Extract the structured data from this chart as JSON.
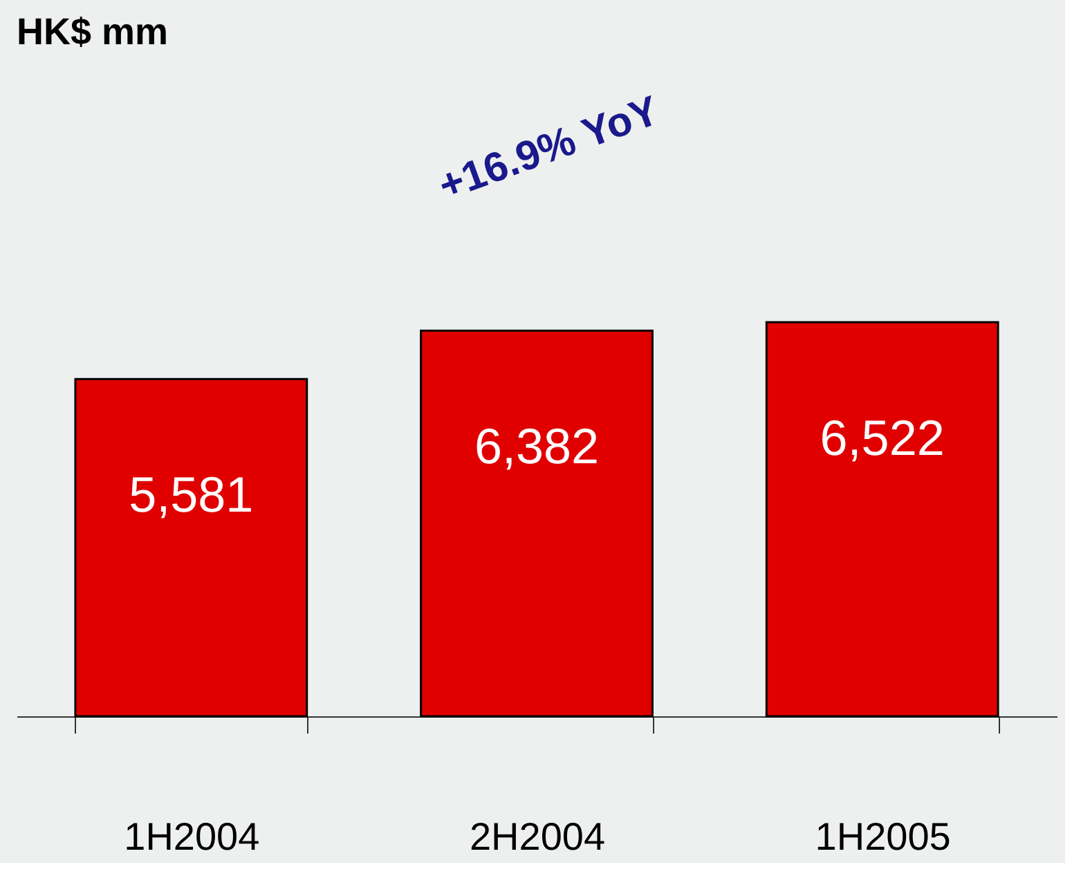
{
  "chart_data": {
    "type": "bar",
    "title": "HK$ mm",
    "categories": [
      "1H2004",
      "2H2004",
      "1H2005"
    ],
    "values": [
      5581,
      6382,
      6522
    ],
    "value_labels": [
      "5,581",
      "6,382",
      "6,522"
    ],
    "color": "#e00000",
    "tick_labels": "x",
    "annotations": [
      "+16.9% YoY"
    ]
  }
}
